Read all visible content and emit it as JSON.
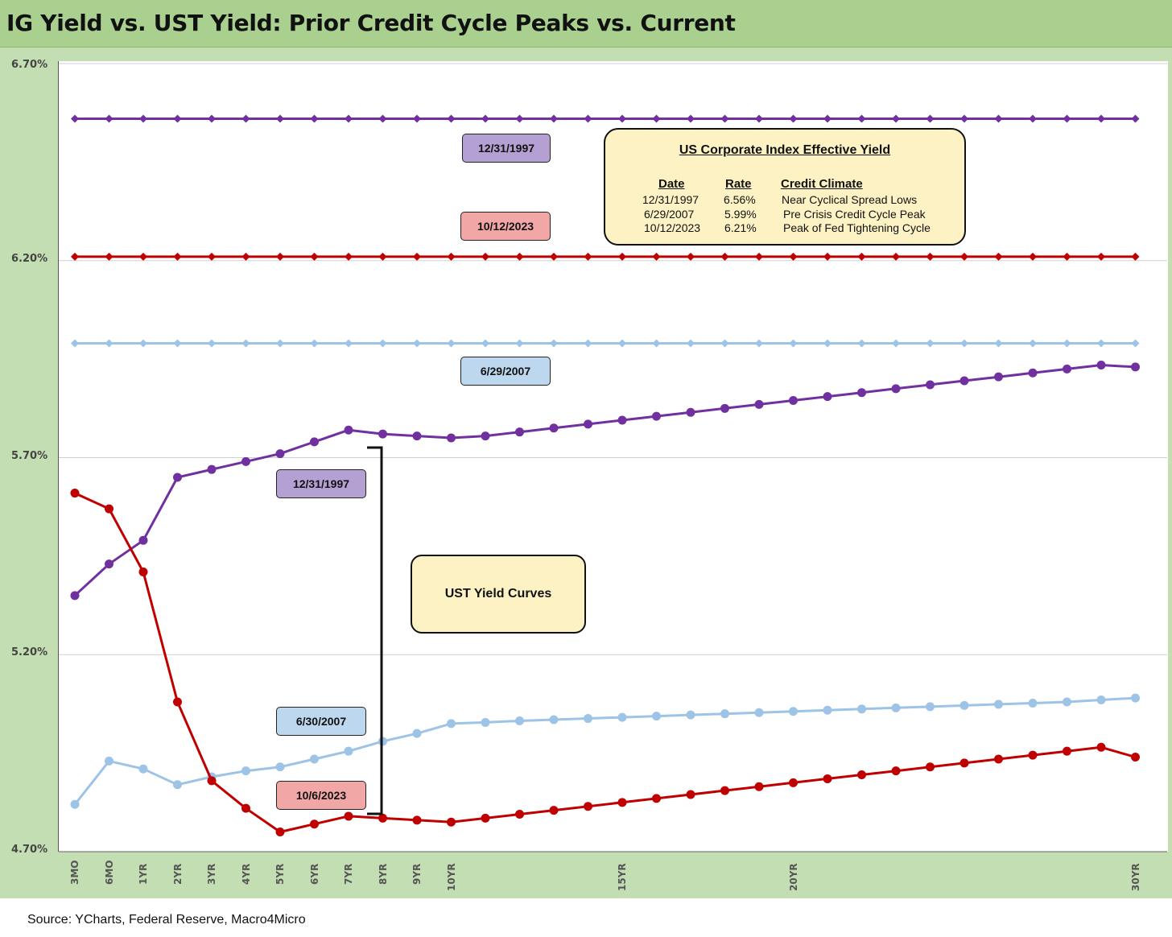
{
  "title": "IG Yield vs. UST Yield: Prior Credit Cycle Peaks vs. Current",
  "source": "Source: YCharts, Federal Reserve, Macro4Micro",
  "colors": {
    "purple": "#7030a0",
    "red": "#c00000",
    "lightblue": "#9dc3e6",
    "purple_label": "#b4a0d2",
    "red_label": "#f2a7a7",
    "blue_label": "#bdd7ee",
    "note_fill": "#fdf2c4"
  },
  "legend_box": {
    "title": "US Corporate Index Effective Yield",
    "headers": [
      "Date",
      "Rate",
      "Credit Climate"
    ],
    "rows": [
      [
        "12/31/1997",
        "6.56%",
        "Near Cyclical Spread Lows"
      ],
      [
        "6/29/2007",
        "5.99%",
        "Pre Crisis Credit Cycle Peak"
      ],
      [
        "10/12/2023",
        "6.21%",
        "Peak of Fed Tightening Cycle"
      ]
    ]
  },
  "ust_label": "UST Yield Curves",
  "series_labels": {
    "ig_1997": "12/31/1997",
    "ig_2023": "10/12/2023",
    "ig_2007": "6/29/2007",
    "ust_1997": "12/31/1997",
    "ust_2007": "6/30/2007",
    "ust_2023": "10/6/2023"
  },
  "chart_data": {
    "type": "line",
    "x": [
      "3MO",
      "6MO",
      "1YR",
      "2YR",
      "3YR",
      "4YR",
      "5YR",
      "6YR",
      "7YR",
      "8YR",
      "9YR",
      "10YR",
      "11YR",
      "12YR",
      "13YR",
      "14YR",
      "15YR",
      "16YR",
      "17YR",
      "18YR",
      "19YR",
      "20YR",
      "21YR",
      "22YR",
      "23YR",
      "24YR",
      "25YR",
      "26YR",
      "27YR",
      "28YR",
      "29YR",
      "30YR"
    ],
    "x_tick_labels": [
      "3MO",
      "6MO",
      "1YR",
      "2YR",
      "3YR",
      "4YR",
      "5YR",
      "6YR",
      "7YR",
      "8YR",
      "9YR",
      "10YR",
      "15YR",
      "20YR",
      "30YR"
    ],
    "y_ticks": [
      "4.70%",
      "5.20%",
      "5.70%",
      "6.20%",
      "6.70%"
    ],
    "ylim": [
      4.7,
      6.7
    ],
    "grid": true,
    "series": [
      {
        "name": "12/31/1997",
        "color": "#7030a0",
        "marker": "diamond",
        "width": 3,
        "values": [
          6.56,
          6.56,
          6.56,
          6.56,
          6.56,
          6.56,
          6.56,
          6.56,
          6.56,
          6.56,
          6.56,
          6.56,
          6.56,
          6.56,
          6.56,
          6.56,
          6.56,
          6.56,
          6.56,
          6.56,
          6.56,
          6.56,
          6.56,
          6.56,
          6.56,
          6.56,
          6.56,
          6.56,
          6.56,
          6.56,
          6.56,
          6.56
        ]
      },
      {
        "name": "10/12/2023",
        "color": "#c00000",
        "marker": "diamond",
        "width": 3,
        "values": [
          6.21,
          6.21,
          6.21,
          6.21,
          6.21,
          6.21,
          6.21,
          6.21,
          6.21,
          6.21,
          6.21,
          6.21,
          6.21,
          6.21,
          6.21,
          6.21,
          6.21,
          6.21,
          6.21,
          6.21,
          6.21,
          6.21,
          6.21,
          6.21,
          6.21,
          6.21,
          6.21,
          6.21,
          6.21,
          6.21,
          6.21,
          6.21
        ]
      },
      {
        "name": "6/29/2007",
        "color": "#9dc3e6",
        "marker": "diamond",
        "width": 3,
        "values": [
          5.99,
          5.99,
          5.99,
          5.99,
          5.99,
          5.99,
          5.99,
          5.99,
          5.99,
          5.99,
          5.99,
          5.99,
          5.99,
          5.99,
          5.99,
          5.99,
          5.99,
          5.99,
          5.99,
          5.99,
          5.99,
          5.99,
          5.99,
          5.99,
          5.99,
          5.99,
          5.99,
          5.99,
          5.99,
          5.99,
          5.99,
          5.99
        ]
      },
      {
        "name": "12/31/1997",
        "color": "#7030a0",
        "marker": "circle",
        "width": 3,
        "values": [
          5.35,
          5.43,
          5.49,
          5.65,
          5.67,
          5.69,
          5.71,
          5.74,
          5.77,
          5.76,
          5.755,
          5.75,
          5.755,
          5.765,
          5.775,
          5.785,
          5.795,
          5.805,
          5.815,
          5.825,
          5.835,
          5.845,
          5.855,
          5.865,
          5.875,
          5.885,
          5.895,
          5.905,
          5.915,
          5.925,
          5.935,
          5.93
        ]
      },
      {
        "name": "6/30/2007",
        "color": "#9dc3e6",
        "marker": "circle",
        "width": 3,
        "values": [
          4.82,
          4.93,
          4.91,
          4.87,
          4.89,
          4.905,
          4.915,
          4.935,
          4.955,
          4.98,
          5.0,
          5.025,
          5.028,
          5.032,
          5.035,
          5.038,
          5.041,
          5.044,
          5.047,
          5.05,
          5.053,
          5.056,
          5.059,
          5.062,
          5.065,
          5.068,
          5.071,
          5.074,
          5.077,
          5.08,
          5.085,
          5.09
        ]
      },
      {
        "name": "10/6/2023",
        "color": "#c00000",
        "marker": "circle",
        "width": 3,
        "values": [
          5.61,
          5.57,
          5.41,
          5.08,
          4.88,
          4.81,
          4.75,
          4.77,
          4.79,
          4.785,
          4.78,
          4.775,
          4.785,
          4.795,
          4.805,
          4.815,
          4.825,
          4.835,
          4.845,
          4.855,
          4.865,
          4.875,
          4.885,
          4.895,
          4.905,
          4.915,
          4.925,
          4.935,
          4.945,
          4.955,
          4.965,
          4.94
        ]
      }
    ]
  }
}
